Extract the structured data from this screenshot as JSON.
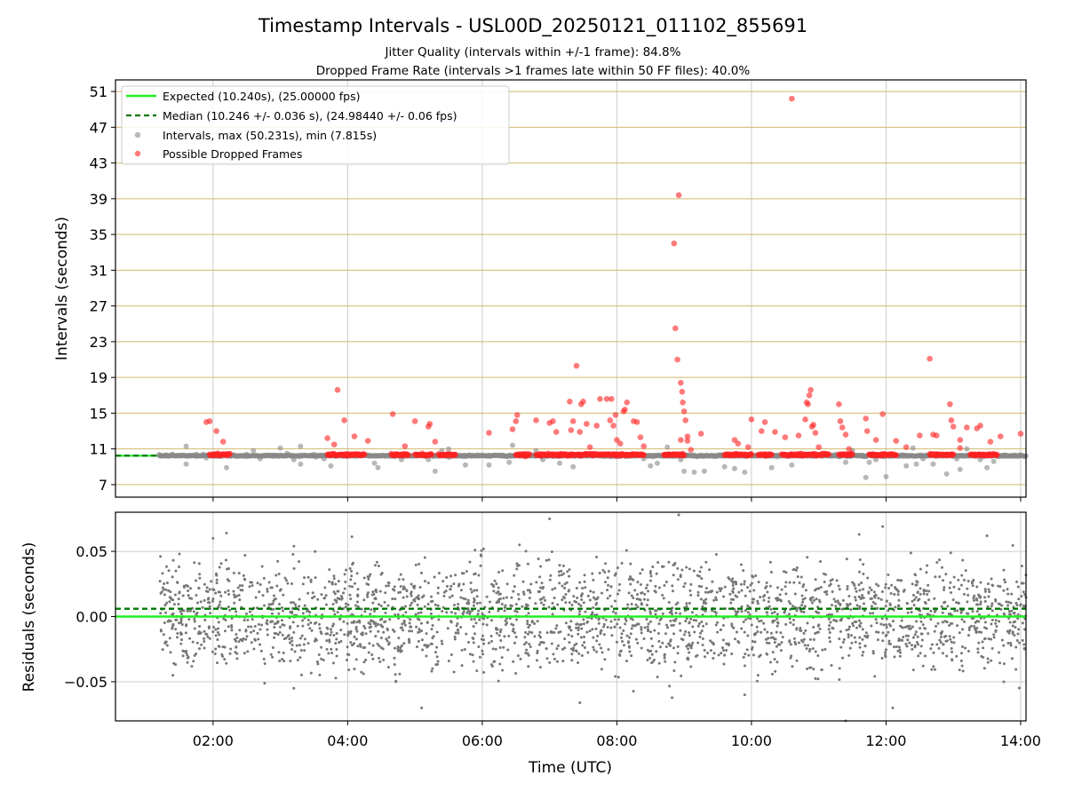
{
  "chart_data": [
    {
      "type": "scatter",
      "title": "Timestamp Intervals - USL00D_20250121_011102_855691",
      "subtitle_lines": [
        "Jitter Quality (intervals within +/-1 frame): 84.8%",
        "Dropped Frame Rate (intervals >1 frames late within 50 FF files): 40.0%"
      ],
      "xlabel": "",
      "ylabel": "Intervals (seconds)",
      "x_range_hours": [
        0.55,
        14.08
      ],
      "ylim": [
        5.6,
        52.3
      ],
      "yticks": [
        7,
        11,
        15,
        19,
        23,
        27,
        31,
        35,
        39,
        43,
        47,
        51
      ],
      "ytick_labels": [
        "7",
        "11",
        "15",
        "19",
        "23",
        "27",
        "31",
        "35",
        "39",
        "43",
        "47",
        "51"
      ],
      "reference_lines": [
        {
          "name": "Expected (10.240s), (25.00000 fps)",
          "value": 10.24,
          "style": "solid",
          "color": "#22ee22"
        },
        {
          "name": "Median (10.246 +/- 0.036 s), (24.98440 +/- 0.06 fps)",
          "value": 10.246,
          "style": "dashed",
          "color": "#007700"
        }
      ],
      "legend": {
        "placement": "upper-left",
        "entries": [
          "Expected (10.240s), (25.00000 fps)",
          "Median (10.246 +/- 0.036 s), (24.98440 +/- 0.06 fps)",
          "Intervals, max (50.231s), min (7.815s)",
          "Possible Dropped Frames"
        ]
      },
      "series": [
        {
          "name": "Intervals, max (50.231s), min (7.815s)",
          "color": "#888888",
          "baseline_value": 10.24,
          "baseline_x_range": [
            1.2,
            14.08
          ],
          "points": [
            [
              1.2,
              10.3
            ],
            [
              1.3,
              10.3
            ],
            [
              1.4,
              10.4
            ],
            [
              1.5,
              10.3
            ],
            [
              1.6,
              11.3
            ],
            [
              1.6,
              9.3
            ],
            [
              1.75,
              10.4
            ],
            [
              1.85,
              10.4
            ],
            [
              1.9,
              10.0
            ],
            [
              2.2,
              8.9
            ],
            [
              2.3,
              10.3
            ],
            [
              2.5,
              10.4
            ],
            [
              2.6,
              10.8
            ],
            [
              2.7,
              9.9
            ],
            [
              2.8,
              10.3
            ],
            [
              2.9,
              10.3
            ],
            [
              3.0,
              11.1
            ],
            [
              3.1,
              10.5
            ],
            [
              3.2,
              9.8
            ],
            [
              3.3,
              11.3
            ],
            [
              3.3,
              9.3
            ],
            [
              3.5,
              10.4
            ],
            [
              3.6,
              10.3
            ],
            [
              3.65,
              9.9
            ],
            [
              3.75,
              9.1
            ],
            [
              4.3,
              10.3
            ],
            [
              4.4,
              9.4
            ],
            [
              4.45,
              8.9
            ],
            [
              4.55,
              10.2
            ],
            [
              4.65,
              10.4
            ],
            [
              4.8,
              9.8
            ],
            [
              5.0,
              10.3
            ],
            [
              5.2,
              9.8
            ],
            [
              5.3,
              8.5
            ],
            [
              5.4,
              10.8
            ],
            [
              5.5,
              11.0
            ],
            [
              5.6,
              10.4
            ],
            [
              5.75,
              9.2
            ],
            [
              6.1,
              10.3
            ],
            [
              6.1,
              9.2
            ],
            [
              6.3,
              10.2
            ],
            [
              6.4,
              9.5
            ],
            [
              6.45,
              11.4
            ],
            [
              6.6,
              10.3
            ],
            [
              6.8,
              10.8
            ],
            [
              6.9,
              9.8
            ],
            [
              7.15,
              9.4
            ],
            [
              7.35,
              9.0
            ],
            [
              7.5,
              10.3
            ],
            [
              7.9,
              10.2
            ],
            [
              8.1,
              10.3
            ],
            [
              8.3,
              10.4
            ],
            [
              8.4,
              9.9
            ],
            [
              8.5,
              9.1
            ],
            [
              8.6,
              9.4
            ],
            [
              8.75,
              11.2
            ],
            [
              8.95,
              9.8
            ],
            [
              9.0,
              8.5
            ],
            [
              9.15,
              8.4
            ],
            [
              9.3,
              8.5
            ],
            [
              9.55,
              10.3
            ],
            [
              9.6,
              9.0
            ],
            [
              9.75,
              8.8
            ],
            [
              9.8,
              10.4
            ],
            [
              9.9,
              8.4
            ],
            [
              10.0,
              10.3
            ],
            [
              10.1,
              10.3
            ],
            [
              10.3,
              8.9
            ],
            [
              10.45,
              10.3
            ],
            [
              10.6,
              9.2
            ],
            [
              10.8,
              10.3
            ],
            [
              11.25,
              10.4
            ],
            [
              11.4,
              9.5
            ],
            [
              11.5,
              10.8
            ],
            [
              11.65,
              10.3
            ],
            [
              11.7,
              7.8
            ],
            [
              11.75,
              9.5
            ],
            [
              11.85,
              9.8
            ],
            [
              11.95,
              10.2
            ],
            [
              12.0,
              7.9
            ],
            [
              12.25,
              10.3
            ],
            [
              12.3,
              9.1
            ],
            [
              12.4,
              11.1
            ],
            [
              12.45,
              9.3
            ],
            [
              12.55,
              9.9
            ],
            [
              12.6,
              10.3
            ],
            [
              12.7,
              9.3
            ],
            [
              12.8,
              10.3
            ],
            [
              12.9,
              8.2
            ],
            [
              13.05,
              9.9
            ],
            [
              13.1,
              8.7
            ],
            [
              13.2,
              11.0
            ],
            [
              13.3,
              10.3
            ],
            [
              13.4,
              9.8
            ],
            [
              13.5,
              8.9
            ],
            [
              13.6,
              9.6
            ],
            [
              13.75,
              10.3
            ],
            [
              13.85,
              10.2
            ],
            [
              14.0,
              10.3
            ]
          ]
        },
        {
          "name": "Possible Dropped Frames",
          "color": "#ff2222",
          "dense_bands_x": [
            [
              1.95,
              2.25
            ],
            [
              3.7,
              4.25
            ],
            [
              4.65,
              4.9
            ],
            [
              5.0,
              5.25
            ],
            [
              5.35,
              5.6
            ],
            [
              6.5,
              6.7
            ],
            [
              6.8,
              8.4
            ],
            [
              8.7,
              9.0
            ],
            [
              9.6,
              10.0
            ],
            [
              10.1,
              10.3
            ],
            [
              10.45,
              11.15
            ],
            [
              11.3,
              11.5
            ],
            [
              11.75,
              12.15
            ],
            [
              12.65,
              13.0
            ],
            [
              13.25,
              13.65
            ]
          ],
          "dense_band_value": 10.35,
          "points": [
            [
              1.9,
              14.0
            ],
            [
              1.95,
              14.1
            ],
            [
              2.05,
              13.0
            ],
            [
              2.15,
              11.8
            ],
            [
              3.7,
              12.2
            ],
            [
              3.8,
              11.5
            ],
            [
              3.85,
              17.6
            ],
            [
              3.95,
              14.2
            ],
            [
              4.1,
              12.4
            ],
            [
              4.3,
              11.9
            ],
            [
              4.67,
              14.9
            ],
            [
              4.85,
              11.3
            ],
            [
              5.0,
              14.1
            ],
            [
              5.2,
              13.5
            ],
            [
              5.22,
              13.8
            ],
            [
              5.3,
              11.8
            ],
            [
              6.1,
              12.8
            ],
            [
              6.45,
              13.2
            ],
            [
              6.5,
              14.1
            ],
            [
              6.52,
              14.8
            ],
            [
              6.8,
              14.2
            ],
            [
              7.0,
              13.9
            ],
            [
              7.05,
              14.1
            ],
            [
              7.1,
              12.9
            ],
            [
              7.3,
              16.3
            ],
            [
              7.32,
              13.1
            ],
            [
              7.35,
              14.1
            ],
            [
              7.4,
              20.3
            ],
            [
              7.45,
              12.9
            ],
            [
              7.47,
              16.0
            ],
            [
              7.5,
              16.3
            ],
            [
              7.55,
              13.8
            ],
            [
              7.6,
              11.2
            ],
            [
              7.7,
              13.6
            ],
            [
              7.75,
              16.6
            ],
            [
              7.85,
              16.6
            ],
            [
              7.9,
              14.2
            ],
            [
              7.92,
              16.6
            ],
            [
              7.95,
              13.6
            ],
            [
              7.98,
              14.8
            ],
            [
              8.0,
              12.0
            ],
            [
              8.05,
              11.6
            ],
            [
              8.1,
              15.2
            ],
            [
              8.12,
              15.4
            ],
            [
              8.15,
              16.2
            ],
            [
              8.25,
              14.1
            ],
            [
              8.3,
              14.0
            ],
            [
              8.35,
              12.3
            ],
            [
              8.4,
              11.3
            ],
            [
              8.85,
              34.0
            ],
            [
              8.87,
              24.5
            ],
            [
              8.9,
              21.0
            ],
            [
              8.92,
              39.4
            ],
            [
              8.95,
              18.4
            ],
            [
              8.97,
              17.4
            ],
            [
              8.98,
              16.2
            ],
            [
              9.0,
              15.2
            ],
            [
              9.02,
              14.2
            ],
            [
              9.05,
              12.4
            ],
            [
              8.95,
              12.0
            ],
            [
              9.05,
              11.9
            ],
            [
              9.1,
              10.9
            ],
            [
              9.25,
              12.7
            ],
            [
              9.75,
              12.0
            ],
            [
              9.8,
              11.6
            ],
            [
              9.95,
              11.2
            ],
            [
              10.0,
              14.3
            ],
            [
              10.15,
              13.0
            ],
            [
              10.2,
              14.0
            ],
            [
              10.35,
              12.9
            ],
            [
              10.5,
              12.3
            ],
            [
              10.6,
              50.2
            ],
            [
              10.7,
              12.5
            ],
            [
              10.8,
              14.3
            ],
            [
              10.82,
              16.2
            ],
            [
              10.84,
              16.0
            ],
            [
              10.86,
              17.0
            ],
            [
              10.88,
              17.6
            ],
            [
              10.9,
              13.5
            ],
            [
              10.92,
              13.7
            ],
            [
              10.95,
              12.8
            ],
            [
              11.0,
              11.2
            ],
            [
              11.3,
              16.0
            ],
            [
              11.32,
              14.1
            ],
            [
              11.35,
              13.4
            ],
            [
              11.4,
              12.6
            ],
            [
              11.45,
              11.0
            ],
            [
              11.7,
              14.4
            ],
            [
              11.72,
              13.0
            ],
            [
              11.85,
              12.0
            ],
            [
              11.95,
              14.9
            ],
            [
              12.15,
              11.9
            ],
            [
              12.5,
              12.5
            ],
            [
              12.65,
              21.1
            ],
            [
              12.7,
              12.6
            ],
            [
              12.75,
              12.5
            ],
            [
              12.95,
              16.0
            ],
            [
              12.97,
              14.2
            ],
            [
              13.0,
              13.5
            ],
            [
              13.1,
              12.0
            ],
            [
              13.2,
              13.4
            ],
            [
              13.35,
              13.3
            ],
            [
              13.4,
              13.6
            ],
            [
              13.55,
              11.8
            ],
            [
              13.7,
              12.4
            ],
            [
              14.0,
              12.7
            ],
            [
              13.1,
              11.1
            ],
            [
              12.3,
              11.2
            ]
          ]
        }
      ]
    },
    {
      "type": "scatter",
      "title": "",
      "xlabel": "Time (UTC)",
      "ylabel": "Residuals (seconds)",
      "x_range_hours": [
        0.55,
        14.08
      ],
      "ylim": [
        -0.08,
        0.08
      ],
      "yticks": [
        -0.05,
        0.0,
        0.05
      ],
      "ytick_labels": [
        "−0.05",
        "0.00",
        "0.05"
      ],
      "xticks": [
        2,
        4,
        6,
        8,
        10,
        12,
        14
      ],
      "xtick_labels": [
        "02:00",
        "04:00",
        "06:00",
        "08:00",
        "10:00",
        "12:00",
        "14:00"
      ],
      "reference_lines": [
        {
          "name": "Expected",
          "value": 0.0,
          "style": "solid",
          "color": "#22ee22"
        },
        {
          "name": "Median",
          "value": 0.006,
          "style": "dashed",
          "color": "#007700"
        }
      ],
      "series": [
        {
          "name": "",
          "color": "#777777",
          "x_range_hours": [
            1.2,
            14.08
          ],
          "level_values": [
            -0.02,
            0.0,
            0.02
          ],
          "spread": 0.012,
          "outlier_range": [
            -0.07,
            0.078
          ],
          "approx_point_count": 2600,
          "points_sample": [
            [
              1.5,
              0.048
            ],
            [
              2.0,
              0.06
            ],
            [
              2.2,
              0.064
            ],
            [
              3.2,
              -0.055
            ],
            [
              5.1,
              -0.07
            ],
            [
              7.0,
              0.075
            ],
            [
              7.45,
              -0.066
            ],
            [
              8.92,
              0.078
            ],
            [
              9.9,
              -0.06
            ],
            [
              11.4,
              -0.08
            ],
            [
              11.6,
              0.063
            ],
            [
              11.95,
              0.069
            ],
            [
              12.1,
              -0.07
            ],
            [
              13.5,
              0.062
            ],
            [
              13.75,
              -0.05
            ]
          ]
        }
      ]
    }
  ]
}
